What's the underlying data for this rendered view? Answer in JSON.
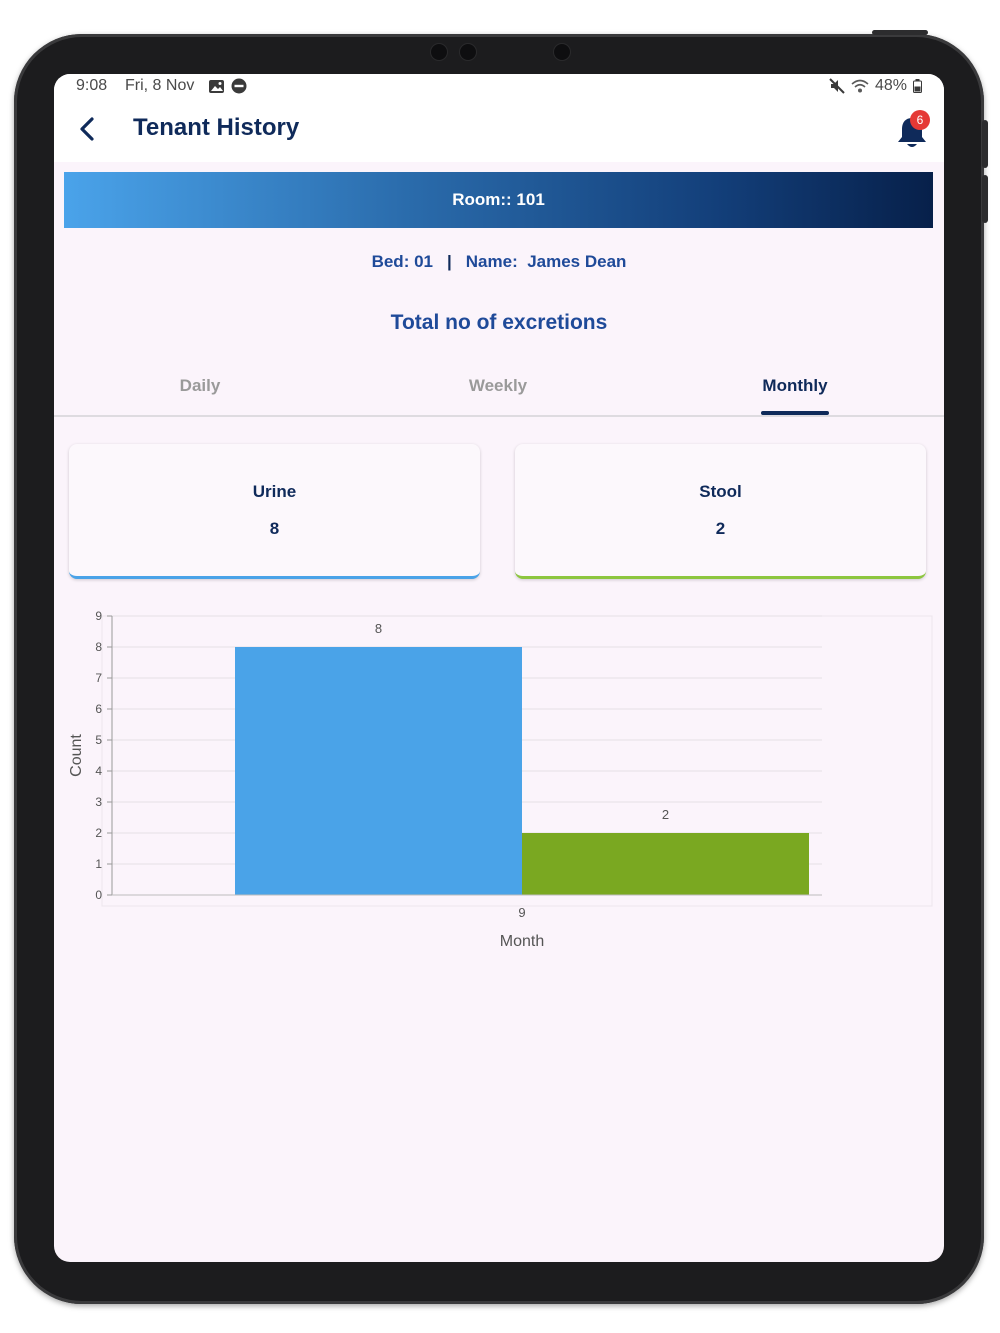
{
  "status_bar": {
    "time": "9:08",
    "date": "Fri, 8 Nov",
    "battery": "48%",
    "icons": [
      "image-icon",
      "dnd-icon",
      "mute-icon",
      "wifi-icon",
      "battery-icon"
    ]
  },
  "app_bar": {
    "title": "Tenant History",
    "notification_count": "6",
    "icons": [
      "chevron-left-icon",
      "bell-icon"
    ]
  },
  "room_banner": {
    "label": "Room:: 101"
  },
  "tenant": {
    "bed": "Bed: 01",
    "separator": "|",
    "name_label": "Name:",
    "name": "James Dean"
  },
  "section_title": "Total no of excretions",
  "tabs": [
    {
      "label": "Daily",
      "active": false
    },
    {
      "label": "Weekly",
      "active": false
    },
    {
      "label": "Monthly",
      "active": true
    }
  ],
  "summary_cards": [
    {
      "label": "Urine",
      "value": "8",
      "accent": "#4aa3e8"
    },
    {
      "label": "Stool",
      "value": "2",
      "accent": "#8dc63f"
    }
  ],
  "colors": {
    "primary": "#0f2a5a",
    "accent_blue": "#4aa3e8",
    "urine_bar": "#4aa3e8",
    "stool_bar": "#7aa821",
    "badge": "#e53935",
    "background": "#fbf4fb"
  },
  "chart_data": {
    "type": "bar",
    "categories": [
      "9"
    ],
    "series": [
      {
        "name": "Urine",
        "values": [
          8
        ],
        "color": "#4aa3e8"
      },
      {
        "name": "Stool",
        "values": [
          2
        ],
        "color": "#7aa821"
      }
    ],
    "xlabel": "Month",
    "ylabel": "Count",
    "ylim": [
      0,
      9
    ],
    "yticks": [
      "0",
      "1",
      "2",
      "3",
      "4",
      "5",
      "6",
      "7",
      "8",
      "9"
    ],
    "data_labels": [
      "8",
      "2"
    ],
    "grid": true
  }
}
